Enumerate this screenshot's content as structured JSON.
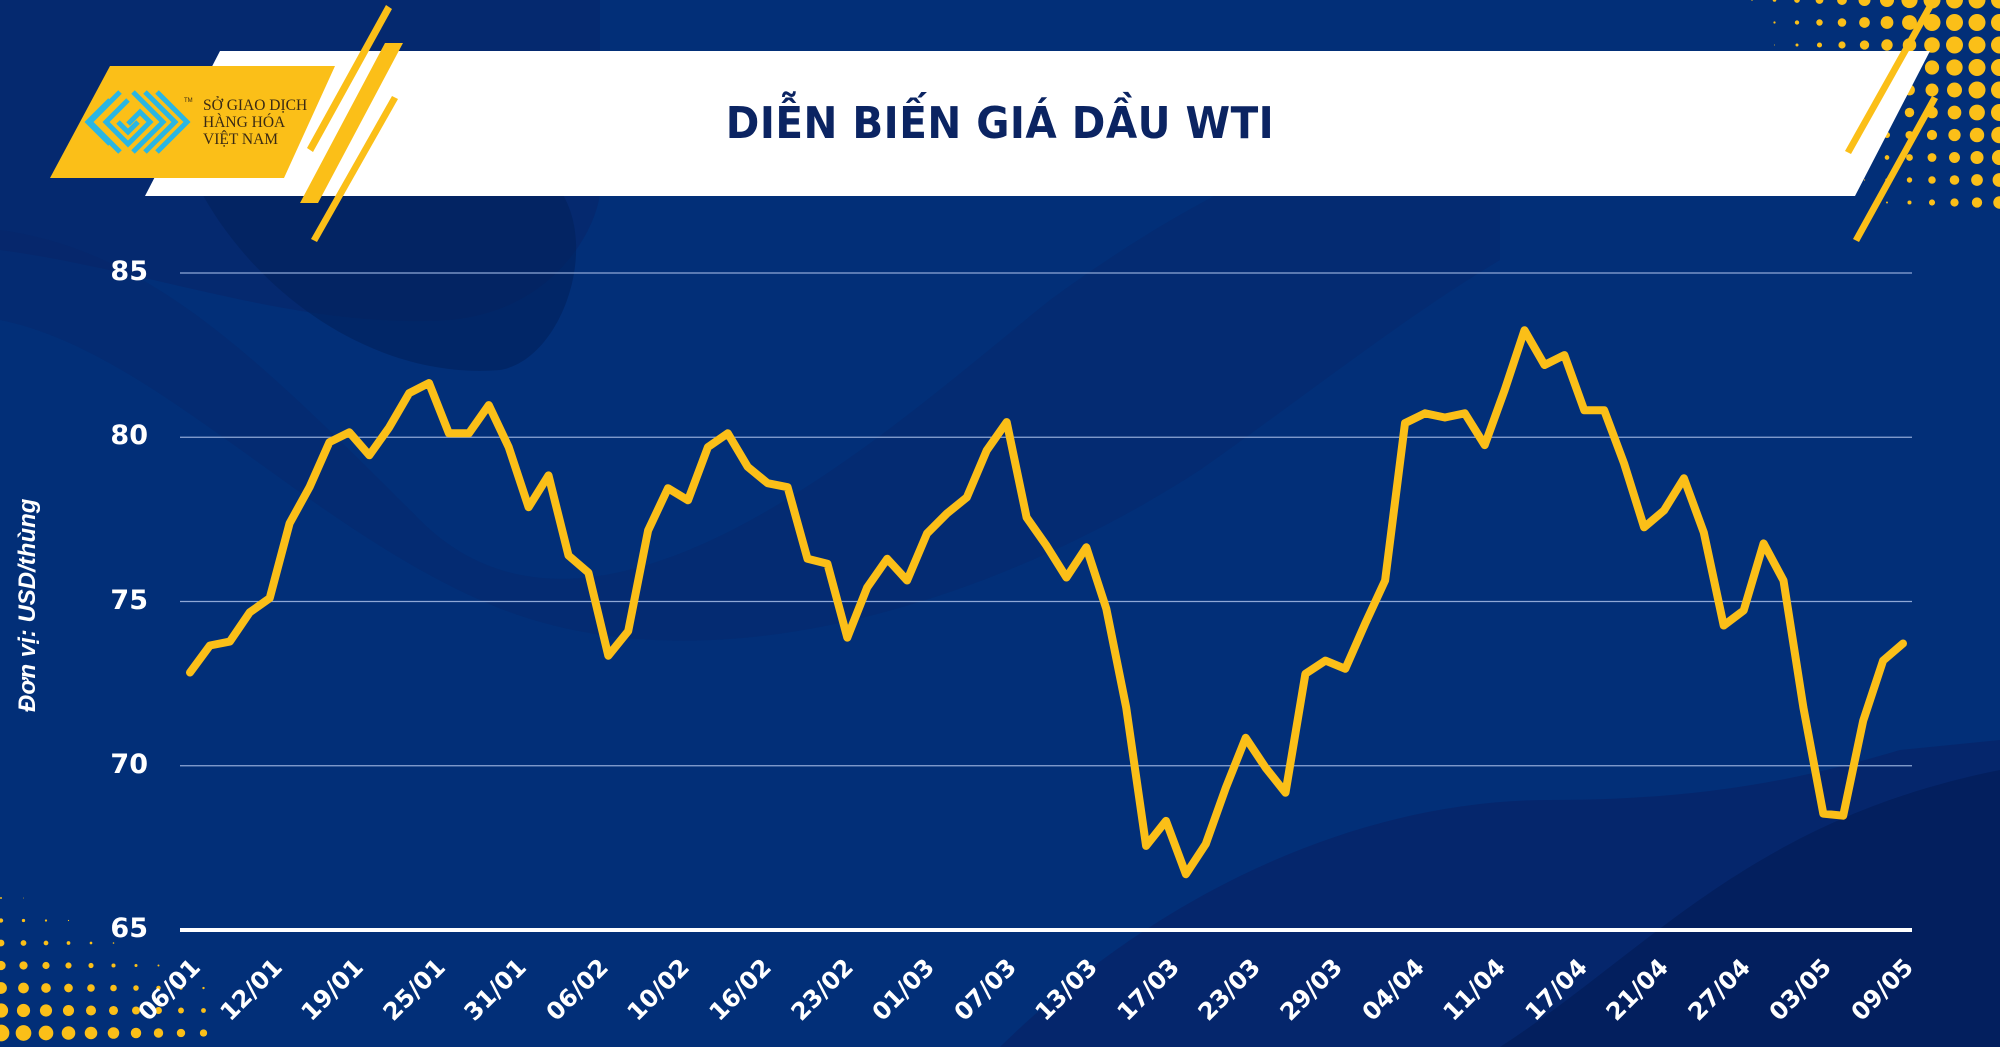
{
  "header": {
    "title": "DIỄN BIẾN GIÁ DẦU WTI",
    "logo": {
      "icon": "sgdhh-maze-logo-icon",
      "lines": [
        "SỞ GIAO DỊCH",
        "HÀNG HÓA",
        "VIỆT NAM"
      ],
      "trademark": "TM"
    }
  },
  "colors": {
    "background": "#022f78",
    "background_dark": "#0a1f62",
    "accent_yellow": "#fbbf18",
    "title_navy": "#0b2462",
    "logo_cyan": "#2ab6e3",
    "gridline": "#8fa8d6",
    "text": "#ffffff"
  },
  "chart_data": {
    "type": "line",
    "title": "DIỄN BIẾN GIÁ DẦU WTI",
    "xlabel": "",
    "ylabel": "Đơn vị: USD/thùng",
    "ylim": [
      65,
      85
    ],
    "yticks": [
      85,
      80,
      75,
      70,
      65
    ],
    "grid": true,
    "legend": "none",
    "x_tick_labels": [
      "06/01",
      "12/01",
      "19/01",
      "25/01",
      "31/01",
      "06/02",
      "10/02",
      "16/02",
      "23/02",
      "01/03",
      "07/03",
      "13/03",
      "17/03",
      "23/03",
      "29/03",
      "04/04",
      "11/04",
      "17/04",
      "21/04",
      "27/04",
      "03/05",
      "09/05"
    ],
    "series": [
      {
        "name": "WTI",
        "color": "#fbbf18",
        "values": [
          72.84,
          73.66,
          73.78,
          74.67,
          75.1,
          77.38,
          78.48,
          79.85,
          80.15,
          79.45,
          80.3,
          81.34,
          81.65,
          80.12,
          80.12,
          80.98,
          79.7,
          77.87,
          78.84,
          76.4,
          75.88,
          73.35,
          74.1,
          77.16,
          78.45,
          78.08,
          79.7,
          80.12,
          79.1,
          78.6,
          78.48,
          76.3,
          76.15,
          73.9,
          75.43,
          76.3,
          75.64,
          77.07,
          77.68,
          78.17,
          79.6,
          80.46,
          77.56,
          76.7,
          75.73,
          76.65,
          74.78,
          71.77,
          67.56,
          68.32,
          66.7,
          67.62,
          69.33,
          70.85,
          69.94,
          69.18,
          72.8,
          73.2,
          72.95,
          74.33,
          75.64,
          80.43,
          80.73,
          80.6,
          80.73,
          79.76,
          81.43,
          83.26,
          82.2,
          82.5,
          80.82,
          80.82,
          79.2,
          77.26,
          77.77,
          78.75,
          77.1,
          74.27,
          74.73,
          76.77,
          75.64,
          71.77,
          68.54,
          68.48,
          71.37,
          73.2,
          73.72
        ]
      }
    ]
  }
}
